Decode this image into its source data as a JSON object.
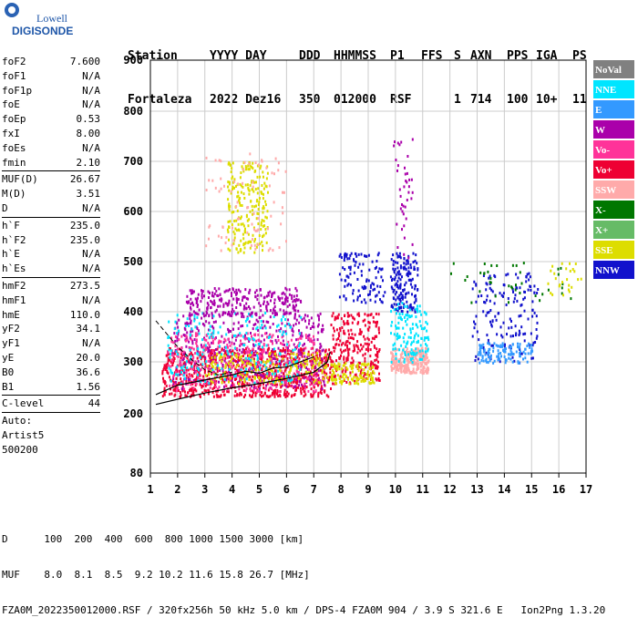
{
  "logo": {
    "line1": "Lowell",
    "line2": "DIGISONDE"
  },
  "header": {
    "labels": [
      "Station",
      "YYYY DAY",
      "DDD",
      "HHMMSS",
      "P1",
      "FFS",
      "S",
      "AXN",
      "PPS",
      "IGA",
      "PS"
    ],
    "values": [
      "Fortaleza",
      "2022 Dez16",
      "350",
      "012000",
      "RSF",
      "",
      "1",
      "714",
      "100",
      "10+",
      "11"
    ]
  },
  "params": [
    {
      "name": "foF2",
      "value": "7.600"
    },
    {
      "name": "foF1",
      "value": "N/A"
    },
    {
      "name": "foF1p",
      "value": "N/A"
    },
    {
      "name": "foE",
      "value": "N/A"
    },
    {
      "name": "foEp",
      "value": "0.53"
    },
    {
      "name": "fxI",
      "value": "8.00"
    },
    {
      "name": "foEs",
      "value": "N/A"
    },
    {
      "name": "fmin",
      "value": "2.10"
    },
    {
      "sep": true
    },
    {
      "name": "MUF(D)",
      "value": "26.67"
    },
    {
      "name": "M(D)",
      "value": "3.51"
    },
    {
      "name": "D",
      "value": "N/A"
    },
    {
      "sep": true
    },
    {
      "name": "h`F",
      "value": "235.0"
    },
    {
      "name": "h`F2",
      "value": "235.0"
    },
    {
      "name": "h`E",
      "value": "N/A"
    },
    {
      "name": "h`Es",
      "value": "N/A"
    },
    {
      "sep": true
    },
    {
      "name": "hmF2",
      "value": "273.5"
    },
    {
      "name": "hmF1",
      "value": "N/A"
    },
    {
      "name": "hmE",
      "value": "110.0"
    },
    {
      "name": "yF2",
      "value": "34.1"
    },
    {
      "name": "yF1",
      "value": "N/A"
    },
    {
      "name": "yE",
      "value": "20.0"
    },
    {
      "name": "B0",
      "value": "36.6"
    },
    {
      "name": "B1",
      "value": "1.56"
    },
    {
      "sep": true
    },
    {
      "name": "C-level",
      "value": "44"
    },
    {
      "sep": true
    },
    {
      "name": "Auto:",
      "value": ""
    },
    {
      "name": "Artist5",
      "value": ""
    },
    {
      "name": "500200",
      "value": ""
    }
  ],
  "footer": {
    "d_row": "D      100  200  400  600  800 1000 1500 3000 [km]",
    "muf_row": "MUF    8.0  8.1  8.5  9.2 10.2 11.6 15.8 26.7 [MHz]",
    "file_row": "FZA0M_2022350012000.RSF / 320fx256h 50 kHz 5.0 km / DPS-4 FZA0M 904 / 3.9 S 321.6 E   Ion2Png 1.3.20"
  },
  "legend": [
    {
      "label": "NoVal",
      "color": "#808080"
    },
    {
      "label": "NNE",
      "color": "#00e5ff"
    },
    {
      "label": "E",
      "color": "#3399ff"
    },
    {
      "label": "W",
      "color": "#aa00aa"
    },
    {
      "label": "Vo-",
      "color": "#ff3399"
    },
    {
      "label": "Vo+",
      "color": "#ee0033"
    },
    {
      "label": "SSW",
      "color": "#ffaaaa"
    },
    {
      "label": "X-",
      "color": "#007700"
    },
    {
      "label": "X+",
      "color": "#66bb66"
    },
    {
      "label": "SSE",
      "color": "#dddd00"
    },
    {
      "label": "NNW",
      "color": "#1111cc"
    }
  ],
  "chart_data": {
    "type": "scatter",
    "xlim": [
      1,
      17
    ],
    "ylim": [
      80,
      900
    ],
    "x_ticks": [
      1,
      2,
      3,
      4,
      5,
      6,
      7,
      8,
      9,
      10,
      11,
      12,
      13,
      14,
      15,
      16,
      17
    ],
    "y_ticks": [
      80,
      200,
      300,
      400,
      500,
      600,
      700,
      800,
      900
    ],
    "grid": true,
    "legend_position": "right",
    "profile_curve": [
      [
        1.2,
        218
      ],
      [
        2,
        228
      ],
      [
        3,
        240
      ],
      [
        4,
        250
      ],
      [
        5,
        258
      ],
      [
        6,
        268
      ],
      [
        7,
        280
      ],
      [
        7.5,
        300
      ],
      [
        7.6,
        320
      ]
    ],
    "trace_curve": [
      [
        1.2,
        237
      ],
      [
        2,
        255
      ],
      [
        3,
        265
      ],
      [
        4,
        275
      ],
      [
        4.5,
        282
      ],
      [
        5,
        278
      ],
      [
        5.5,
        288
      ],
      [
        6,
        290
      ],
      [
        7,
        310
      ]
    ],
    "dashed_curve": [
      [
        1.2,
        382
      ],
      [
        2,
        330
      ],
      [
        2.5,
        305
      ],
      [
        3,
        285
      ],
      [
        3.5,
        275
      ],
      [
        4,
        280
      ]
    ],
    "clusters": [
      {
        "name": "F-trace",
        "legend_index": 5,
        "xrange": [
          1.4,
          7.6
        ],
        "yrange": [
          235,
          330
        ],
        "count": 900
      },
      {
        "name": "F-trace-W",
        "legend_index": 3,
        "xrange": [
          1.8,
          7.4
        ],
        "yrange": [
          250,
          400
        ],
        "count": 450
      },
      {
        "name": "F-trace-pink",
        "legend_index": 4,
        "xrange": [
          1.6,
          7.2
        ],
        "yrange": [
          245,
          360
        ],
        "count": 350
      },
      {
        "name": "F-trace-yellow",
        "legend_index": 9,
        "xrange": [
          3,
          7.5
        ],
        "yrange": [
          260,
          320
        ],
        "count": 200
      },
      {
        "name": "F-trace-cyan",
        "legend_index": 1,
        "xrange": [
          1.6,
          6.5
        ],
        "yrange": [
          260,
          400
        ],
        "count": 200
      },
      {
        "name": "W-band-400",
        "legend_index": 3,
        "xrange": [
          2.3,
          6.5
        ],
        "yrange": [
          395,
          450
        ],
        "count": 260
      },
      {
        "name": "SSE-high",
        "legend_index": 9,
        "xrange": [
          3.8,
          5.3
        ],
        "yrange": [
          520,
          700
        ],
        "count": 220
      },
      {
        "name": "SSW-high",
        "legend_index": 6,
        "xrange": [
          3,
          6
        ],
        "yrange": [
          520,
          720
        ],
        "count": 80
      },
      {
        "name": "F2-cluster-8",
        "legend_index": 5,
        "xrange": [
          7.6,
          9.4
        ],
        "yrange": [
          260,
          400
        ],
        "count": 260
      },
      {
        "name": "F2-cluster-8-yellow",
        "legend_index": 9,
        "xrange": [
          7.6,
          9.2
        ],
        "yrange": [
          260,
          300
        ],
        "count": 120
      },
      {
        "name": "NNW-8",
        "legend_index": 10,
        "xrange": [
          7.9,
          9.6
        ],
        "yrange": [
          420,
          520
        ],
        "count": 110
      },
      {
        "name": "NNW-10",
        "legend_index": 10,
        "xrange": [
          9.8,
          10.8
        ],
        "yrange": [
          400,
          520
        ],
        "count": 160
      },
      {
        "name": "SSW-10",
        "legend_index": 6,
        "xrange": [
          9.8,
          11.2
        ],
        "yrange": [
          280,
          330
        ],
        "count": 250
      },
      {
        "name": "cyan-10",
        "legend_index": 1,
        "xrange": [
          9.8,
          11.2
        ],
        "yrange": [
          300,
          420
        ],
        "count": 140
      },
      {
        "name": "W-10",
        "legend_index": 3,
        "xrange": [
          9.9,
          10.6
        ],
        "yrange": [
          500,
          750
        ],
        "count": 40
      },
      {
        "name": "NNW-13-15",
        "legend_index": 10,
        "xrange": [
          12.8,
          15.2
        ],
        "yrange": [
          300,
          480
        ],
        "count": 160
      },
      {
        "name": "E-13-15",
        "legend_index": 2,
        "xrange": [
          13,
          15
        ],
        "yrange": [
          300,
          340
        ],
        "count": 120
      },
      {
        "name": "X-14-16",
        "legend_index": 7,
        "xrange": [
          12,
          16.5
        ],
        "yrange": [
          420,
          500
        ],
        "count": 40
      },
      {
        "name": "SSE-15-17",
        "legend_index": 9,
        "xrange": [
          15.5,
          16.8
        ],
        "yrange": [
          430,
          500
        ],
        "count": 25
      }
    ]
  }
}
